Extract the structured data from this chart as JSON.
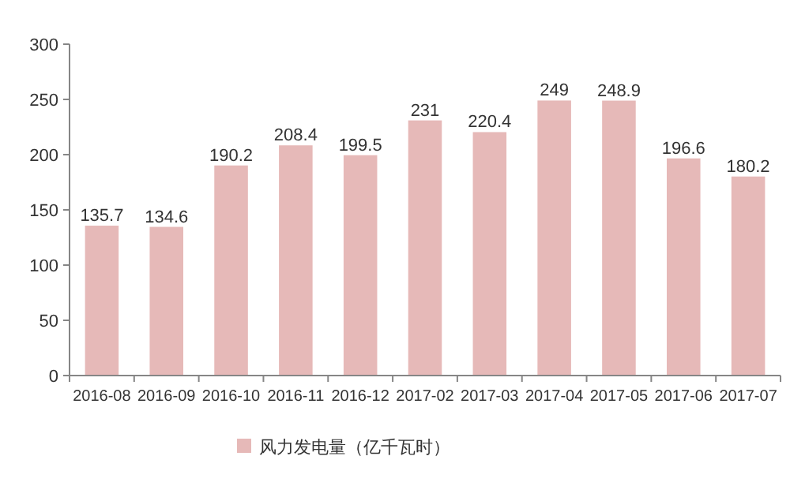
{
  "chart_data": {
    "type": "bar",
    "categories": [
      "2016-08",
      "2016-09",
      "2016-10",
      "2016-11",
      "2016-12",
      "2017-02",
      "2017-03",
      "2017-04",
      "2017-05",
      "2017-06",
      "2017-07"
    ],
    "series": [
      {
        "name": "风力发电量（亿千瓦时）",
        "color": "#e6b9b8",
        "values": [
          135.7,
          134.6,
          190.2,
          208.4,
          199.5,
          231,
          220.4,
          249,
          248.9,
          196.6,
          180.2
        ]
      }
    ],
    "ylim": [
      0,
      300
    ],
    "yticks": [
      0,
      50,
      100,
      150,
      200,
      250,
      300
    ],
    "grid": false,
    "legend": "bottom",
    "data_labels": true
  }
}
